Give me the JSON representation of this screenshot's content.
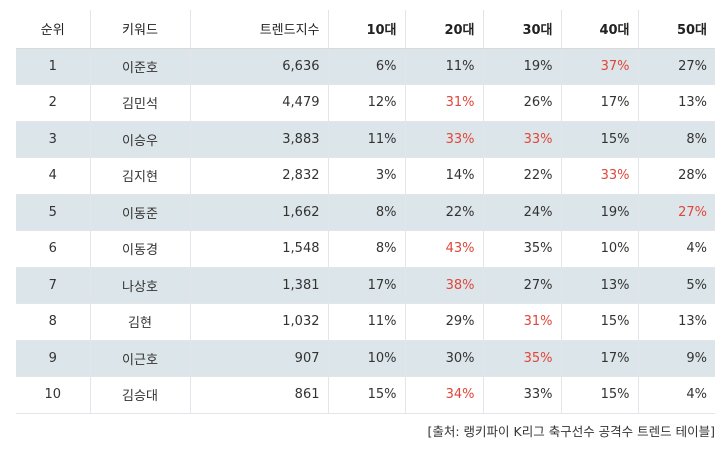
{
  "table": {
    "headers": [
      "순위",
      "키워드",
      "트렌드지수",
      "10대",
      "20대",
      "30대",
      "40대",
      "50대"
    ],
    "rows": [
      {
        "rank": "1",
        "keyword": "이준호",
        "index": "6,636",
        "ages": [
          "6%",
          "11%",
          "19%",
          "37%",
          "27%"
        ],
        "highlight": [
          3
        ]
      },
      {
        "rank": "2",
        "keyword": "김민석",
        "index": "4,479",
        "ages": [
          "12%",
          "31%",
          "26%",
          "17%",
          "13%"
        ],
        "highlight": [
          1
        ]
      },
      {
        "rank": "3",
        "keyword": "이승우",
        "index": "3,883",
        "ages": [
          "11%",
          "33%",
          "33%",
          "15%",
          "8%"
        ],
        "highlight": [
          1,
          2
        ]
      },
      {
        "rank": "4",
        "keyword": "김지현",
        "index": "2,832",
        "ages": [
          "3%",
          "14%",
          "22%",
          "33%",
          "28%"
        ],
        "highlight": [
          3
        ]
      },
      {
        "rank": "5",
        "keyword": "이동준",
        "index": "1,662",
        "ages": [
          "8%",
          "22%",
          "24%",
          "19%",
          "27%"
        ],
        "highlight": [
          4
        ]
      },
      {
        "rank": "6",
        "keyword": "이동경",
        "index": "1,548",
        "ages": [
          "8%",
          "43%",
          "35%",
          "10%",
          "4%"
        ],
        "highlight": [
          1
        ]
      },
      {
        "rank": "7",
        "keyword": "나상호",
        "index": "1,381",
        "ages": [
          "17%",
          "38%",
          "27%",
          "13%",
          "5%"
        ],
        "highlight": [
          1
        ]
      },
      {
        "rank": "8",
        "keyword": "김현",
        "index": "1,032",
        "ages": [
          "11%",
          "29%",
          "31%",
          "15%",
          "13%"
        ],
        "highlight": [
          2
        ]
      },
      {
        "rank": "9",
        "keyword": "이근호",
        "index": "907",
        "ages": [
          "10%",
          "30%",
          "35%",
          "17%",
          "9%"
        ],
        "highlight": [
          2
        ]
      },
      {
        "rank": "10",
        "keyword": "김승대",
        "index": "861",
        "ages": [
          "15%",
          "34%",
          "33%",
          "15%",
          "4%"
        ],
        "highlight": [
          1
        ]
      }
    ]
  },
  "colors": {
    "highlight_text": "#e0463a",
    "alt_row_bg": "#dce5e9"
  },
  "source": "[출처: 랭키파이 K리그 축구선수 공격수 트렌드 테이블]"
}
